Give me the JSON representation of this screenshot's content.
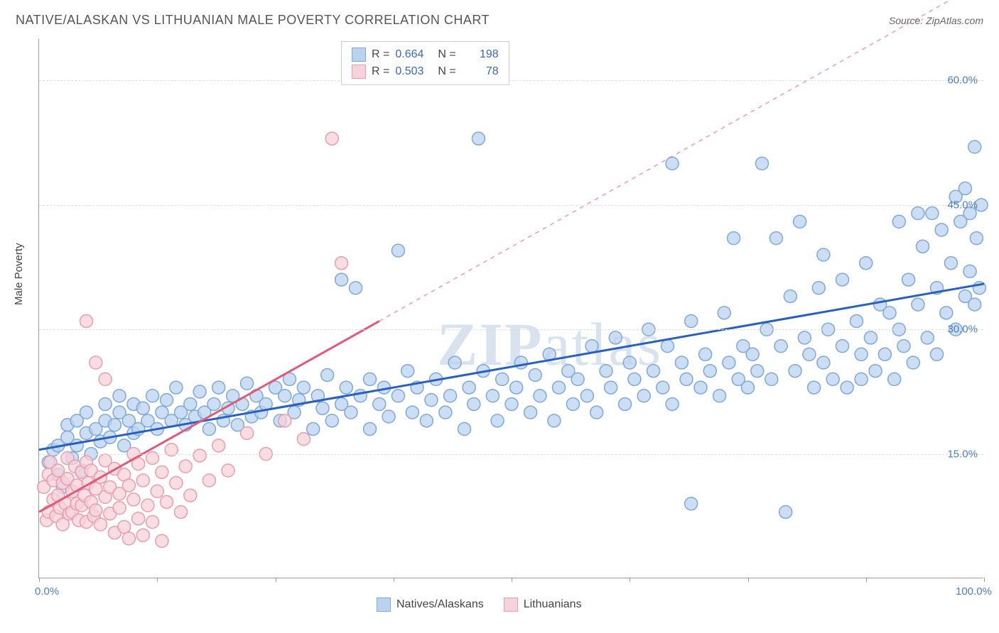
{
  "title": "NATIVE/ALASKAN VS LITHUANIAN MALE POVERTY CORRELATION CHART",
  "source": "Source: ZipAtlas.com",
  "watermark": "ZIPatlas",
  "ylabel": "Male Poverty",
  "chart": {
    "type": "scatter",
    "xlim": [
      0,
      100
    ],
    "ylim": [
      0,
      65
    ],
    "x_ticks": [
      0,
      12.5,
      25,
      37.5,
      50,
      62.5,
      75,
      87.5,
      100
    ],
    "x_tick_labels": {
      "0": "0.0%",
      "100": "100.0%"
    },
    "y_gridlines": [
      15,
      30,
      45,
      60
    ],
    "y_tick_labels": {
      "15": "15.0%",
      "30": "30.0%",
      "45": "45.0%",
      "60": "60.0%"
    },
    "background_color": "#ffffff",
    "grid_color": "#dddddd",
    "axis_color": "#999999",
    "tick_label_color": "#4a7cc4",
    "marker_radius": 9,
    "marker_stroke_width": 1.5,
    "series": [
      {
        "name": "Natives/Alaskans",
        "color_fill": "#b9d3ef",
        "color_stroke": "#7fa8d8",
        "trend_color": "#2860c0",
        "trend_width": 3,
        "trend_dash": "none",
        "trend_start": [
          0,
          15.5
        ],
        "trend_end": [
          100,
          35.5
        ],
        "R": 0.664,
        "N": 198,
        "points": [
          [
            1,
            14
          ],
          [
            1.5,
            15.5
          ],
          [
            2,
            12.5
          ],
          [
            2,
            16
          ],
          [
            2.5,
            11
          ],
          [
            3,
            17
          ],
          [
            3,
            18.5
          ],
          [
            3.5,
            14.5
          ],
          [
            4,
            16
          ],
          [
            4,
            19
          ],
          [
            4.5,
            13
          ],
          [
            5,
            17.5
          ],
          [
            5,
            20
          ],
          [
            5.5,
            15
          ],
          [
            6,
            18
          ],
          [
            6.5,
            16.5
          ],
          [
            7,
            19
          ],
          [
            7,
            21
          ],
          [
            7.5,
            17
          ],
          [
            8,
            18.5
          ],
          [
            8.5,
            20
          ],
          [
            8.5,
            22
          ],
          [
            9,
            16
          ],
          [
            9.5,
            19
          ],
          [
            10,
            21
          ],
          [
            10,
            17.5
          ],
          [
            10.5,
            18
          ],
          [
            11,
            20.5
          ],
          [
            11.5,
            19
          ],
          [
            12,
            22
          ],
          [
            12.5,
            18
          ],
          [
            13,
            20
          ],
          [
            13.5,
            21.5
          ],
          [
            14,
            19
          ],
          [
            14.5,
            23
          ],
          [
            15,
            20
          ],
          [
            15.5,
            18.5
          ],
          [
            16,
            21
          ],
          [
            16.5,
            19.5
          ],
          [
            17,
            22.5
          ],
          [
            17.5,
            20
          ],
          [
            18,
            18
          ],
          [
            18.5,
            21
          ],
          [
            19,
            23
          ],
          [
            19.5,
            19
          ],
          [
            20,
            20.5
          ],
          [
            20.5,
            22
          ],
          [
            21,
            18.5
          ],
          [
            21.5,
            21
          ],
          [
            22,
            23.5
          ],
          [
            22.5,
            19.5
          ],
          [
            23,
            22
          ],
          [
            23.5,
            20
          ],
          [
            24,
            21
          ],
          [
            25,
            23
          ],
          [
            25.5,
            19
          ],
          [
            26,
            22
          ],
          [
            26.5,
            24
          ],
          [
            27,
            20
          ],
          [
            27.5,
            21.5
          ],
          [
            28,
            23
          ],
          [
            29,
            18
          ],
          [
            29.5,
            22
          ],
          [
            30,
            20.5
          ],
          [
            30.5,
            24.5
          ],
          [
            31,
            19
          ],
          [
            32,
            21
          ],
          [
            32,
            36
          ],
          [
            32.5,
            23
          ],
          [
            33,
            20
          ],
          [
            33.5,
            35
          ],
          [
            34,
            22
          ],
          [
            35,
            24
          ],
          [
            35,
            18
          ],
          [
            36,
            21
          ],
          [
            36.5,
            23
          ],
          [
            37,
            19.5
          ],
          [
            38,
            22
          ],
          [
            38,
            39.5
          ],
          [
            39,
            25
          ],
          [
            39.5,
            20
          ],
          [
            40,
            23
          ],
          [
            41,
            19
          ],
          [
            41.5,
            21.5
          ],
          [
            42,
            24
          ],
          [
            43,
            20
          ],
          [
            43.5,
            22
          ],
          [
            44,
            26
          ],
          [
            45,
            18
          ],
          [
            45.5,
            23
          ],
          [
            46,
            21
          ],
          [
            46.5,
            53
          ],
          [
            47,
            25
          ],
          [
            48,
            22
          ],
          [
            48.5,
            19
          ],
          [
            49,
            24
          ],
          [
            50,
            21
          ],
          [
            50.5,
            23
          ],
          [
            51,
            26
          ],
          [
            52,
            20
          ],
          [
            52.5,
            24.5
          ],
          [
            53,
            22
          ],
          [
            54,
            27
          ],
          [
            54.5,
            19
          ],
          [
            55,
            23
          ],
          [
            56,
            25
          ],
          [
            56.5,
            21
          ],
          [
            57,
            24
          ],
          [
            58,
            22
          ],
          [
            58.5,
            28
          ],
          [
            59,
            20
          ],
          [
            60,
            25
          ],
          [
            60.5,
            23
          ],
          [
            61,
            29
          ],
          [
            62,
            21
          ],
          [
            62.5,
            26
          ],
          [
            63,
            24
          ],
          [
            64,
            22
          ],
          [
            64.5,
            30
          ],
          [
            65,
            25
          ],
          [
            66,
            23
          ],
          [
            66.5,
            28
          ],
          [
            67,
            21
          ],
          [
            67,
            50
          ],
          [
            68,
            26
          ],
          [
            68.5,
            24
          ],
          [
            69,
            31
          ],
          [
            69,
            9
          ],
          [
            70,
            23
          ],
          [
            70.5,
            27
          ],
          [
            71,
            25
          ],
          [
            72,
            22
          ],
          [
            72.5,
            32
          ],
          [
            73,
            26
          ],
          [
            73.5,
            41
          ],
          [
            74,
            24
          ],
          [
            74.5,
            28
          ],
          [
            75,
            80,
            33
          ],
          [
            75,
            23
          ],
          [
            75.5,
            27
          ],
          [
            76,
            25
          ],
          [
            76.5,
            50
          ],
          [
            77,
            30
          ],
          [
            77.5,
            24
          ],
          [
            78,
            41
          ],
          [
            78.5,
            28
          ],
          [
            79,
            8
          ],
          [
            79.5,
            34
          ],
          [
            80,
            25
          ],
          [
            80.5,
            43
          ],
          [
            81,
            29
          ],
          [
            81.5,
            27
          ],
          [
            82,
            23
          ],
          [
            82.5,
            35
          ],
          [
            83,
            39
          ],
          [
            83,
            26
          ],
          [
            83.5,
            30
          ],
          [
            84,
            24
          ],
          [
            85,
            28
          ],
          [
            85,
            36
          ],
          [
            85.5,
            23
          ],
          [
            86.5,
            31
          ],
          [
            87,
            27
          ],
          [
            87,
            24
          ],
          [
            87.5,
            38
          ],
          [
            88,
            29
          ],
          [
            88.5,
            25
          ],
          [
            89,
            33
          ],
          [
            89.5,
            27
          ],
          [
            90,
            32
          ],
          [
            90.5,
            24
          ],
          [
            91,
            43
          ],
          [
            91,
            30
          ],
          [
            91.5,
            28
          ],
          [
            92,
            36
          ],
          [
            92.5,
            26
          ],
          [
            93,
            44
          ],
          [
            93,
            33
          ],
          [
            93.5,
            40
          ],
          [
            94,
            29
          ],
          [
            94.5,
            44
          ],
          [
            95,
            35
          ],
          [
            95,
            27
          ],
          [
            95.5,
            42
          ],
          [
            96,
            32
          ],
          [
            96.5,
            38
          ],
          [
            97,
            30
          ],
          [
            97,
            46
          ],
          [
            97.5,
            43
          ],
          [
            98,
            34
          ],
          [
            98,
            47
          ],
          [
            98.5,
            37
          ],
          [
            98.5,
            44
          ],
          [
            99,
            33
          ],
          [
            99,
            52
          ],
          [
            99.2,
            41
          ],
          [
            99.5,
            35
          ],
          [
            99.7,
            45
          ]
        ]
      },
      {
        "name": "Lithuanians",
        "color_fill": "#f6d2da",
        "color_stroke": "#e99cb0",
        "trend_color": "#e05a7a",
        "trend_width": 3,
        "trend_dash": "none",
        "trend_start": [
          0,
          8
        ],
        "trend_end": [
          36,
          31
        ],
        "trend_dash_ext_start": [
          36,
          31
        ],
        "trend_dash_ext_end": [
          100,
          72
        ],
        "R": 0.503,
        "N": 78,
        "points": [
          [
            0.5,
            11
          ],
          [
            0.8,
            7
          ],
          [
            1,
            12.5
          ],
          [
            1,
            8
          ],
          [
            1.2,
            14
          ],
          [
            1.5,
            9.5
          ],
          [
            1.5,
            11.8
          ],
          [
            1.8,
            7.5
          ],
          [
            2,
            10
          ],
          [
            2,
            13
          ],
          [
            2.2,
            8.5
          ],
          [
            2.5,
            11.5
          ],
          [
            2.5,
            6.5
          ],
          [
            2.8,
            9
          ],
          [
            3,
            12
          ],
          [
            3,
            14.5
          ],
          [
            3.2,
            7.8
          ],
          [
            3.5,
            10.5
          ],
          [
            3.5,
            8
          ],
          [
            3.8,
            13.5
          ],
          [
            4,
            9
          ],
          [
            4,
            11.2
          ],
          [
            4.2,
            7
          ],
          [
            4.5,
            12.8
          ],
          [
            4.5,
            8.8
          ],
          [
            4.8,
            10
          ],
          [
            5,
            14
          ],
          [
            5,
            6.8
          ],
          [
            5.2,
            11.5
          ],
          [
            5.5,
            9.2
          ],
          [
            5.5,
            13
          ],
          [
            5.8,
            7.5
          ],
          [
            6,
            10.8
          ],
          [
            6,
            8.2
          ],
          [
            6.5,
            12.2
          ],
          [
            6.5,
            6.5
          ],
          [
            7,
            9.8
          ],
          [
            7,
            14.2
          ],
          [
            7.5,
            11
          ],
          [
            7.5,
            7.8
          ],
          [
            8,
            13.2
          ],
          [
            8,
            5.5
          ],
          [
            8.5,
            10.2
          ],
          [
            8.5,
            8.5
          ],
          [
            9,
            12.5
          ],
          [
            9,
            6.2
          ],
          [
            9.5,
            11.2
          ],
          [
            9.5,
            4.8
          ],
          [
            10,
            9.5
          ],
          [
            10,
            15
          ],
          [
            10.5,
            7.2
          ],
          [
            10.5,
            13.8
          ],
          [
            11,
            11.8
          ],
          [
            11,
            5.2
          ],
          [
            11.5,
            8.8
          ],
          [
            12,
            14.5
          ],
          [
            12,
            6.8
          ],
          [
            12.5,
            10.5
          ],
          [
            13,
            12.8
          ],
          [
            13,
            4.5
          ],
          [
            13.5,
            9.2
          ],
          [
            14,
            15.5
          ],
          [
            14.5,
            11.5
          ],
          [
            15,
            8
          ],
          [
            15.5,
            13.5
          ],
          [
            16,
            10
          ],
          [
            17,
            14.8
          ],
          [
            18,
            11.8
          ],
          [
            19,
            16
          ],
          [
            20,
            13
          ],
          [
            22,
            17.5
          ],
          [
            24,
            15
          ],
          [
            26,
            19
          ],
          [
            28,
            16.8
          ],
          [
            31,
            53
          ],
          [
            32,
            38
          ],
          [
            5,
            31
          ],
          [
            6,
            26
          ],
          [
            7,
            24
          ]
        ]
      }
    ],
    "legend_top": {
      "rows": [
        {
          "swatch_fill": "#b9d3ef",
          "swatch_stroke": "#7fa8d8",
          "r_label": "R =",
          "r": "0.664",
          "n_label": "N =",
          "n": "198"
        },
        {
          "swatch_fill": "#f6d2da",
          "swatch_stroke": "#e99cb0",
          "r_label": "R =",
          "r": "0.503",
          "n_label": "N =",
          "n": "78"
        }
      ]
    },
    "legend_bottom": [
      {
        "swatch_fill": "#b9d3ef",
        "swatch_stroke": "#7fa8d8",
        "label": "Natives/Alaskans"
      },
      {
        "swatch_fill": "#f6d2da",
        "swatch_stroke": "#e99cb0",
        "label": "Lithuanians"
      }
    ]
  }
}
